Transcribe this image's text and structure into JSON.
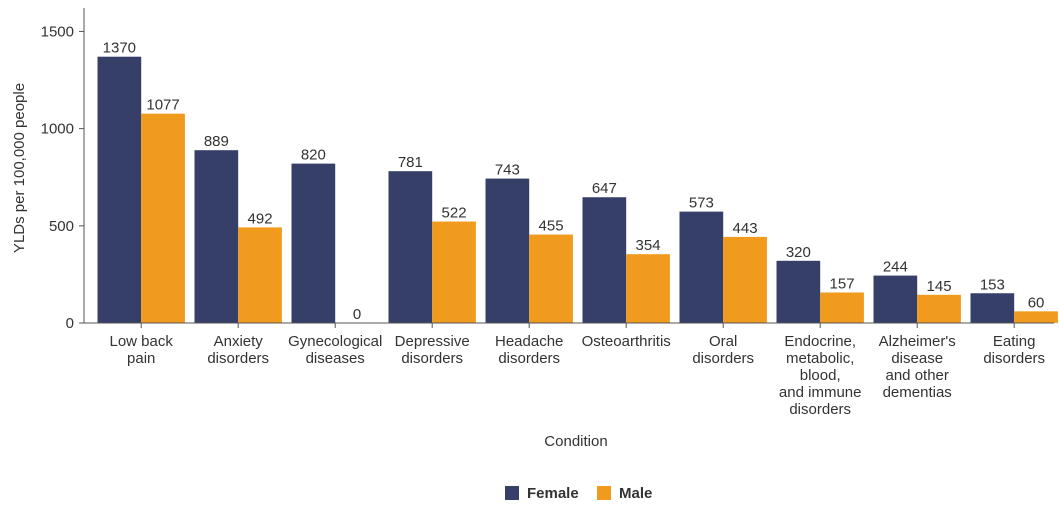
{
  "chart_data": {
    "type": "bar",
    "title": "",
    "xlabel": "Condition",
    "ylabel": "YLDs per 100,000 people",
    "ylim": [
      0,
      1600
    ],
    "yticks": [
      0,
      500,
      1000,
      1500
    ],
    "grid": false,
    "legend_position": "bottom",
    "categories": [
      [
        "Low back",
        "pain"
      ],
      [
        "Anxiety",
        "disorders"
      ],
      [
        "Gynecological",
        "diseases"
      ],
      [
        "Depressive",
        "disorders"
      ],
      [
        "Headache",
        "disorders"
      ],
      [
        "Osteoarthritis"
      ],
      [
        "Oral",
        "disorders"
      ],
      [
        "Endocrine,",
        "metabolic,",
        "blood,",
        "and immune",
        "disorders"
      ],
      [
        "Alzheimer's",
        "disease",
        "and other",
        "dementias"
      ],
      [
        "Eating",
        "disorders"
      ]
    ],
    "series": [
      {
        "name": "Female",
        "color": "#353f68",
        "values": [
          1370,
          889,
          820,
          781,
          743,
          647,
          573,
          320,
          244,
          153
        ]
      },
      {
        "name": "Male",
        "color": "#f09b1e",
        "values": [
          1077,
          492,
          0,
          522,
          455,
          354,
          443,
          157,
          145,
          60
        ]
      }
    ]
  }
}
